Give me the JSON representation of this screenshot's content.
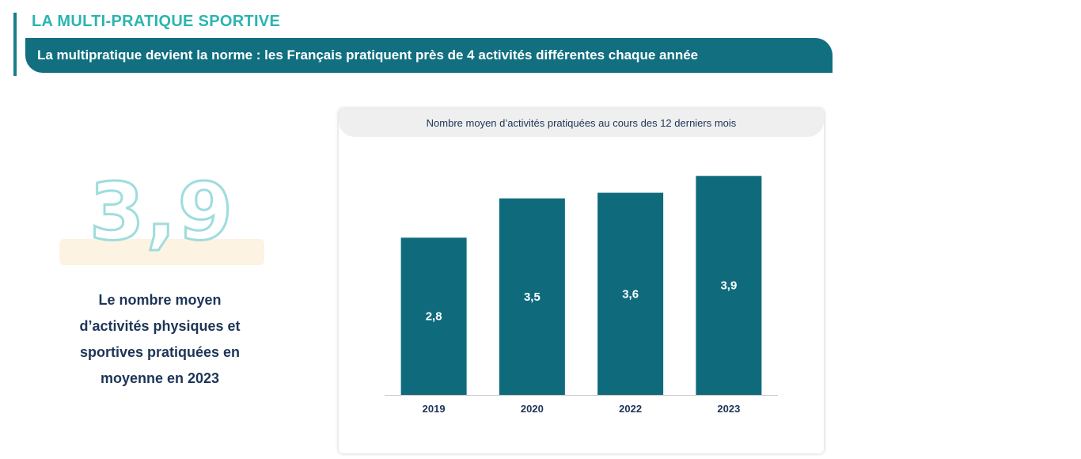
{
  "header": {
    "title": "LA MULTI-PRATIQUE SPORTIVE",
    "subtitle": "La multipratique devient la norme : les Français pratiquent près de 4 activités différentes chaque année"
  },
  "stat": {
    "value": "3,9",
    "description_lines": [
      "Le nombre moyen",
      "d’activités physiques et",
      "sportives pratiquées en",
      "moyenne en 2023"
    ]
  },
  "colors": {
    "bar": "#0f6b7c",
    "title_accent": "#2bb4b0",
    "banner": "#116f80",
    "text_dark": "#1d3557"
  },
  "chart_data": {
    "type": "bar",
    "title": "Nombre moyen d’activités pratiquées au cours des 12 derniers mois",
    "categories": [
      "2019",
      "2020",
      "2022",
      "2023"
    ],
    "values": [
      2.8,
      3.5,
      3.6,
      3.9
    ],
    "value_labels": [
      "2,8",
      "3,5",
      "3,6",
      "3,9"
    ],
    "xlabel": "",
    "ylabel": "",
    "ylim": [
      0,
      4.2
    ],
    "grid": false,
    "legend": "none"
  }
}
